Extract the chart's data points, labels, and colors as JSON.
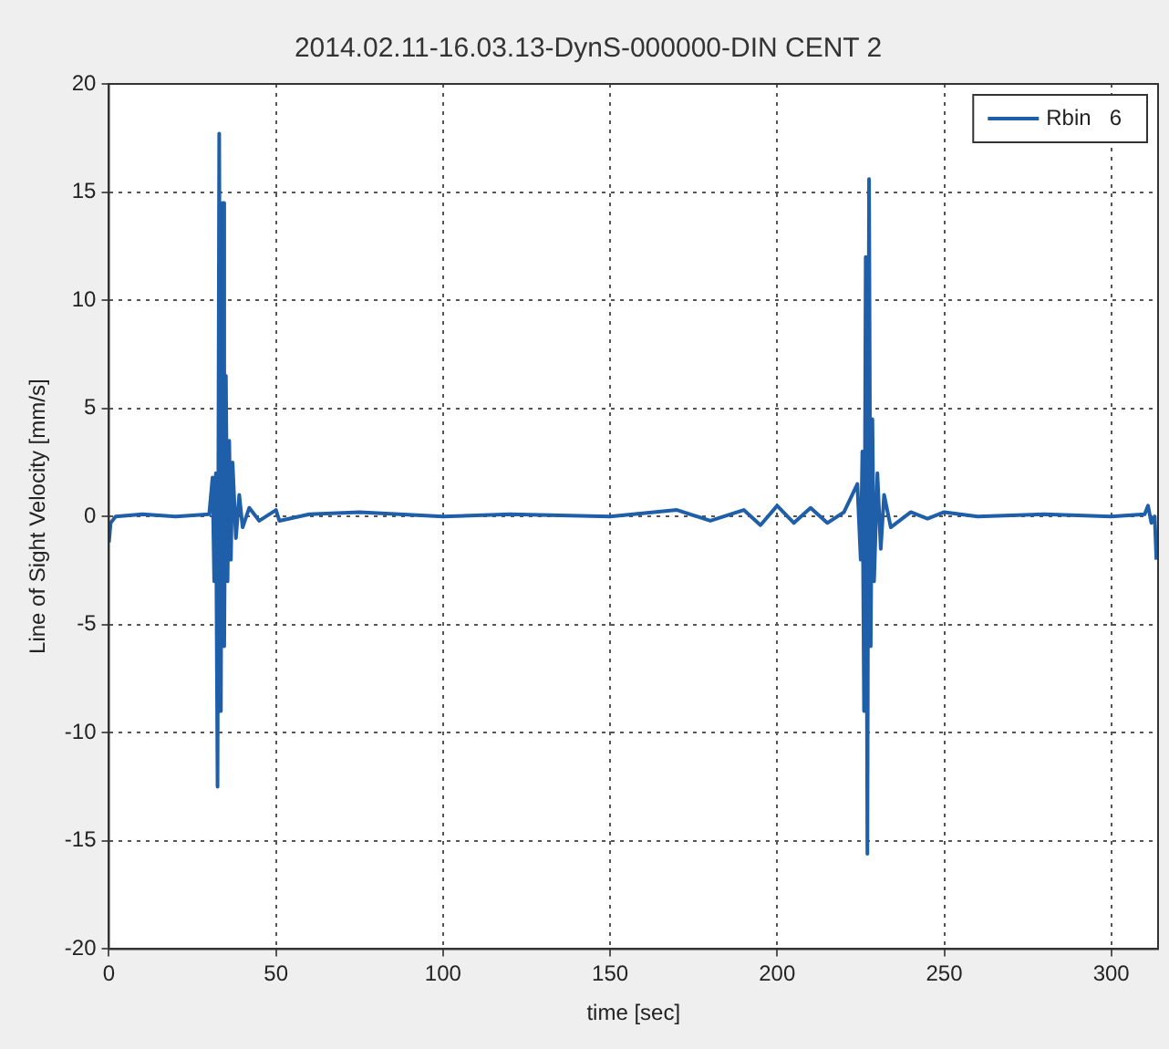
{
  "chart_data": {
    "type": "line",
    "title": "2014.02.11-16.03.13-DynS-000000-DIN CENT 2",
    "xlabel": "time [sec]",
    "ylabel": "Line of Sight Velocity [mm/s]",
    "xlim": [
      0,
      314
    ],
    "xticks": [
      0,
      50,
      100,
      150,
      200,
      250,
      300
    ],
    "ylim": [
      -20,
      20
    ],
    "yticks": [
      -20,
      -15,
      -10,
      -5,
      0,
      5,
      10,
      15,
      20
    ],
    "grid": true,
    "legend": "top right",
    "marker": "none",
    "line_style": "solid",
    "x": [
      0,
      0.5,
      2,
      10,
      20,
      30,
      31,
      31.5,
      32,
      32.5,
      33,
      33.5,
      34,
      34.5,
      35,
      35.5,
      36,
      36.5,
      37,
      38,
      39,
      40,
      42,
      45,
      50,
      51,
      60,
      75,
      100,
      120,
      150,
      170,
      180,
      190,
      195,
      200,
      205,
      210,
      215,
      220,
      224,
      225,
      225.5,
      226,
      226.5,
      227,
      227.5,
      228,
      228.5,
      229,
      230,
      231,
      232,
      234,
      240,
      245,
      250,
      260,
      280,
      300,
      310,
      311,
      312,
      313,
      313.5
    ],
    "series": [
      {
        "name": "Rbin   6",
        "color": "#1f5ea8",
        "values": [
          -1.2,
          -0.3,
          0,
          0.1,
          0,
          0.1,
          1.8,
          -3,
          2,
          -12.5,
          17.7,
          -9,
          14.5,
          -6,
          6.5,
          -3,
          3.5,
          -2,
          2.5,
          -1,
          1,
          -0.5,
          0.4,
          -0.2,
          0.3,
          -0.2,
          0.1,
          0.2,
          0,
          0.1,
          0,
          0.3,
          -0.2,
          0.3,
          -0.4,
          0.5,
          -0.3,
          0.4,
          -0.3,
          0.2,
          1.5,
          -2,
          3,
          -9,
          12,
          -15.6,
          15.6,
          -6,
          4.5,
          -3,
          2,
          -1.5,
          1,
          -0.5,
          0.2,
          -0.1,
          0.2,
          0,
          0.1,
          0,
          0.1,
          0.5,
          -0.3,
          0,
          -2
        ]
      }
    ]
  }
}
